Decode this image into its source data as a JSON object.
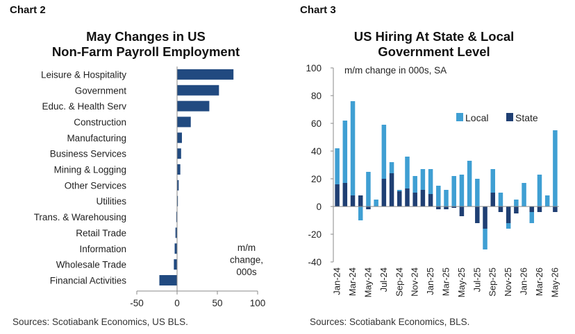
{
  "chart2": {
    "label": "Chart 2",
    "title_line1": "May Changes in US",
    "title_line2": "Non-Farm Payroll Employment",
    "source": "Sources: Scotiabank Economics, US BLS.",
    "note_lines": [
      "m/m",
      "change,",
      "000s"
    ],
    "color": "#214a80"
  },
  "chart3": {
    "label": "Chart 3",
    "title_line1": "US Hiring At State & Local",
    "title_line2": "Government Level",
    "subtitle": "m/m change in 000s, SA",
    "source": "Sources: Scotiabank Economics, BLS.",
    "local_color": "#3f9fd3",
    "state_color": "#1f3f73"
  },
  "chart_data": [
    {
      "type": "bar",
      "orientation": "horizontal",
      "title": "May Changes in US Non-Farm Payroll Employment",
      "categories": [
        "Leisure & Hospitality",
        "Government",
        "Educ. & Health Serv",
        "Construction",
        "Manufacturing",
        "Business Services",
        "Mining & Logging",
        "Other Services",
        "Utilities",
        "Trans. & Warehousing",
        "Retail Trade",
        "Information",
        "Wholesale Trade",
        "Financial Activities"
      ],
      "values": [
        70,
        52,
        40,
        17,
        6,
        5,
        4,
        2,
        1,
        -1,
        -2,
        -3,
        -4,
        -22
      ],
      "xlim": [
        -50,
        100
      ],
      "xticks": [
        -50,
        0,
        50,
        100
      ],
      "annotation": "m/m change, 000s"
    },
    {
      "type": "bar",
      "stacked": true,
      "title": "US Hiring At State & Local Government Level",
      "subtitle": "m/m change in 000s, SA",
      "legend": "top-right",
      "ylim": [
        -40,
        100
      ],
      "yticks": [
        -40,
        -20,
        0,
        20,
        40,
        60,
        80,
        100
      ],
      "xticklabels": [
        "Jan-24",
        "Mar-24",
        "May-24",
        "Jul-24",
        "Sep-24",
        "Nov-24",
        "Jan-25",
        "Mar-25",
        "May-25",
        "Jul-25",
        "Sep-25",
        "Nov-25",
        "Jan-26",
        "Mar-26",
        "May-26"
      ],
      "x": [
        "Jan-24",
        "Feb-24",
        "Mar-24",
        "Apr-24",
        "May-24",
        "Jun-24",
        "Jul-24",
        "Aug-24",
        "Sep-24",
        "Oct-24",
        "Nov-24",
        "Dec-24",
        "Jan-25",
        "Feb-25",
        "Mar-25",
        "Apr-25",
        "May-25",
        "Jun-25",
        "Jul-25",
        "Aug-25",
        "Sep-25",
        "Oct-25",
        "Nov-25",
        "Dec-25",
        "Jan-26",
        "Feb-26",
        "Mar-26",
        "Apr-26",
        "May-26"
      ],
      "series": [
        {
          "name": "Local",
          "values": [
            26,
            45,
            68,
            -10,
            25,
            5,
            39,
            8,
            1,
            23,
            12,
            15,
            18,
            15,
            12,
            22,
            23,
            33,
            20,
            -15,
            17,
            10,
            -4,
            5,
            17,
            -8,
            23,
            8,
            55
          ]
        },
        {
          "name": "State",
          "values": [
            16,
            17,
            8,
            8,
            -2,
            0,
            20,
            24,
            11,
            13,
            10,
            12,
            9,
            -2,
            -2,
            -1,
            -7,
            0,
            -12,
            -16,
            10,
            -4,
            -12,
            -5,
            0,
            -4,
            -4,
            0,
            -4
          ]
        }
      ]
    }
  ]
}
